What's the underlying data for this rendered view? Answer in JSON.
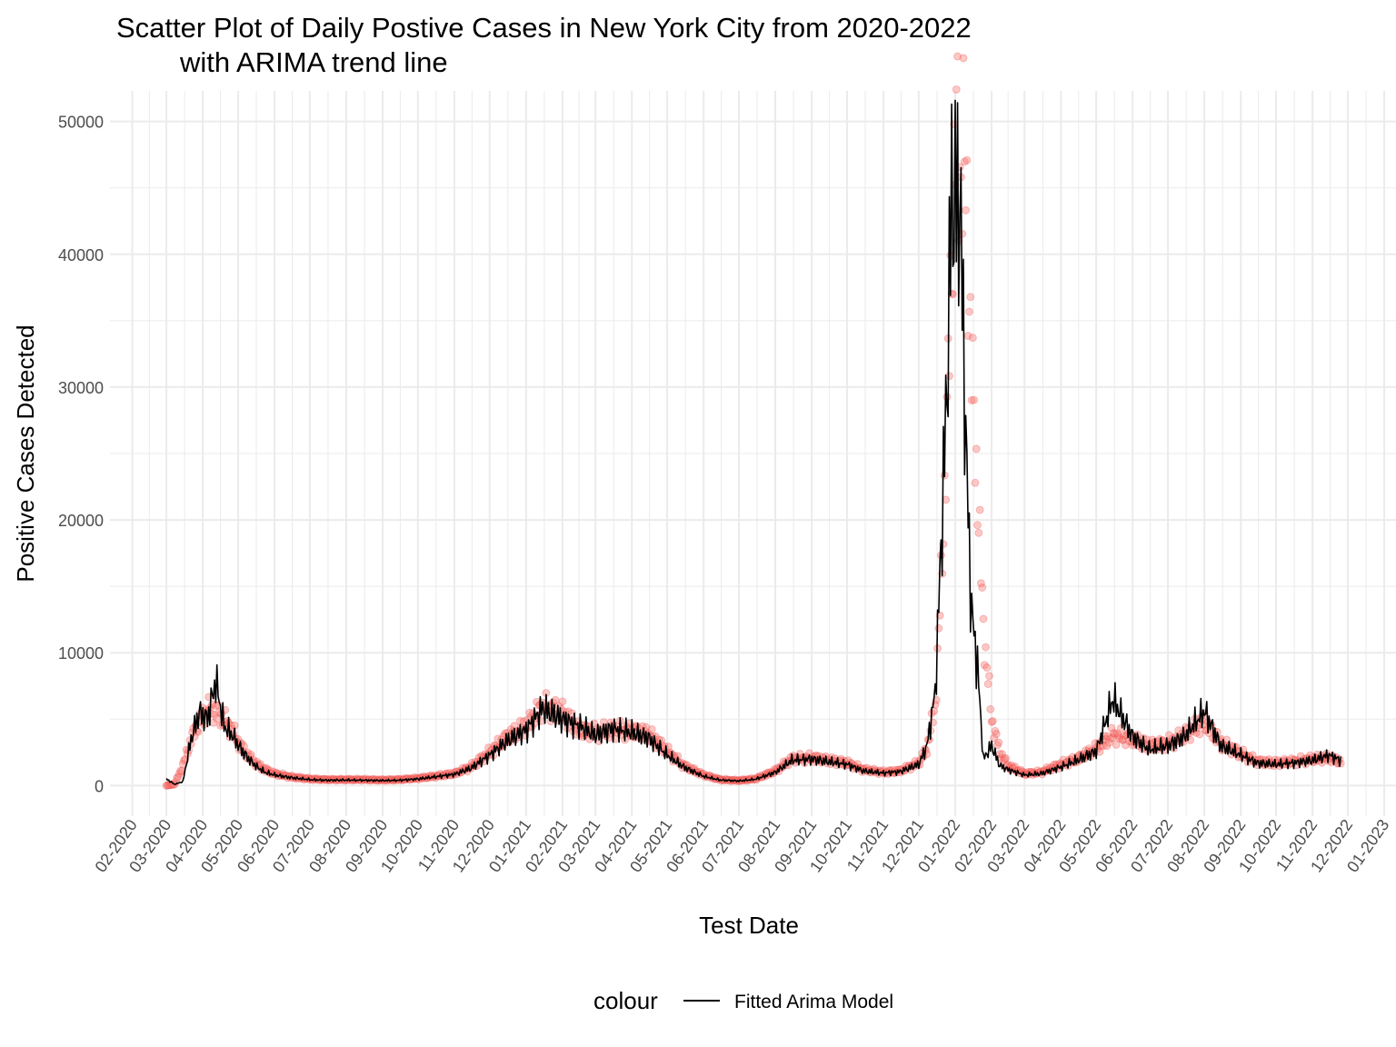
{
  "chart_data": {
    "type": "scatter",
    "title_line1": "Scatter Plot of Daily Postive Cases in New York City from 2020-2022",
    "title_line2": "with ARIMA trend line",
    "xlabel": "Test Date",
    "ylabel": "Positive Cases Detected",
    "xlim": [
      "2020-01-13",
      "2023-01-11"
    ],
    "ylim": [
      -2300,
      52300
    ],
    "x_tick_labels": [
      "02-2020",
      "03-2020",
      "04-2020",
      "05-2020",
      "06-2020",
      "07-2020",
      "08-2020",
      "09-2020",
      "10-2020",
      "11-2020",
      "12-2020",
      "01-2021",
      "02-2021",
      "03-2021",
      "04-2021",
      "05-2021",
      "06-2021",
      "07-2021",
      "08-2021",
      "09-2021",
      "10-2021",
      "11-2021",
      "12-2021",
      "01-2022",
      "02-2022",
      "03-2022",
      "04-2022",
      "05-2022",
      "06-2022",
      "07-2022",
      "08-2022",
      "09-2022",
      "10-2022",
      "11-2022",
      "12-2022",
      "01-2023"
    ],
    "y_ticks": [
      0,
      10000,
      20000,
      30000,
      40000,
      50000
    ],
    "grid": true,
    "legend": {
      "title": "colour",
      "position": "bottom",
      "entries": [
        "Fitted Arima Model"
      ]
    },
    "colors": {
      "points": "#f8766d",
      "point_stroke": "#e8282a",
      "line": "#000000",
      "grid": "#ebebeb"
    },
    "series": [
      {
        "kind": "points",
        "x": [
          "2020-03-01",
          "2020-03-08",
          "2020-03-15",
          "2020-03-22",
          "2020-03-29",
          "2020-04-05",
          "2020-04-12",
          "2020-04-19",
          "2020-04-26",
          "2020-05-03",
          "2020-05-10",
          "2020-05-17",
          "2020-05-24",
          "2020-06-01",
          "2020-06-15",
          "2020-07-01",
          "2020-07-15",
          "2020-08-01",
          "2020-08-15",
          "2020-09-01",
          "2020-09-15",
          "2020-10-01",
          "2020-10-15",
          "2020-11-01",
          "2020-11-15",
          "2020-12-01",
          "2020-12-15",
          "2021-01-01",
          "2021-01-15",
          "2021-02-01",
          "2021-02-15",
          "2021-03-01",
          "2021-03-15",
          "2021-04-01",
          "2021-04-15",
          "2021-05-01",
          "2021-05-15",
          "2021-06-01",
          "2021-06-15",
          "2021-07-01",
          "2021-07-15",
          "2021-08-01",
          "2021-08-15",
          "2021-09-01",
          "2021-09-15",
          "2021-10-01",
          "2021-10-15",
          "2021-11-01",
          "2021-11-15",
          "2021-12-01",
          "2021-12-08",
          "2021-12-15",
          "2021-12-20",
          "2021-12-25",
          "2021-12-29",
          "2022-01-02",
          "2022-01-05",
          "2022-01-08",
          "2022-01-11",
          "2022-01-15",
          "2022-01-20",
          "2022-01-25",
          "2022-02-01",
          "2022-02-08",
          "2022-02-15",
          "2022-03-01",
          "2022-03-15",
          "2022-04-01",
          "2022-04-15",
          "2022-05-01",
          "2022-05-15",
          "2022-06-01",
          "2022-06-15",
          "2022-07-01",
          "2022-07-15",
          "2022-08-01",
          "2022-08-15",
          "2022-09-01",
          "2022-09-15",
          "2022-10-01",
          "2022-10-15",
          "2022-11-01",
          "2022-11-15",
          "2022-11-25"
        ],
        "y": [
          0,
          100,
          1500,
          3500,
          4800,
          5800,
          5500,
          5000,
          4200,
          3000,
          2200,
          1600,
          1200,
          900,
          650,
          500,
          450,
          450,
          450,
          420,
          450,
          550,
          700,
          900,
          1400,
          2500,
          3600,
          4500,
          6000,
          5500,
          4200,
          4000,
          4200,
          4100,
          3900,
          2600,
          1500,
          800,
          450,
          380,
          500,
          1100,
          2000,
          2100,
          1900,
          1700,
          1200,
          1000,
          1100,
          1700,
          2800,
          6000,
          15000,
          27000,
          40000,
          49800,
          46200,
          47600,
          42800,
          31500,
          22000,
          12000,
          5000,
          2500,
          1500,
          900,
          1000,
          1600,
          2000,
          2800,
          3800,
          3500,
          3000,
          3200,
          3800,
          4800,
          3200,
          2400,
          1800,
          1700,
          1800,
          2000,
          2100,
          1800
        ]
      },
      {
        "kind": "line",
        "name": "Fitted Arima Model",
        "x": [
          "2020-03-01",
          "2020-03-08",
          "2020-03-15",
          "2020-03-22",
          "2020-03-29",
          "2020-04-05",
          "2020-04-12",
          "2020-04-19",
          "2020-04-26",
          "2020-05-03",
          "2020-05-10",
          "2020-05-17",
          "2020-05-24",
          "2020-06-01",
          "2020-06-15",
          "2020-07-01",
          "2020-07-15",
          "2020-08-01",
          "2020-08-15",
          "2020-09-01",
          "2020-09-15",
          "2020-10-01",
          "2020-10-15",
          "2020-11-01",
          "2020-11-15",
          "2020-12-01",
          "2020-12-15",
          "2021-01-01",
          "2021-01-15",
          "2021-02-01",
          "2021-02-15",
          "2021-03-01",
          "2021-03-15",
          "2021-04-01",
          "2021-04-15",
          "2021-05-01",
          "2021-05-15",
          "2021-06-01",
          "2021-06-15",
          "2021-07-01",
          "2021-07-15",
          "2021-08-01",
          "2021-08-15",
          "2021-09-01",
          "2021-09-15",
          "2021-10-01",
          "2021-10-15",
          "2021-11-01",
          "2021-11-15",
          "2021-12-01",
          "2021-12-08",
          "2021-12-15",
          "2021-12-20",
          "2021-12-25",
          "2021-12-29",
          "2022-01-02",
          "2022-01-05",
          "2022-01-08",
          "2022-01-11",
          "2022-01-15",
          "2022-01-20",
          "2022-01-25",
          "2022-02-01",
          "2022-02-08",
          "2022-02-15",
          "2022-03-01",
          "2022-03-15",
          "2022-04-01",
          "2022-04-15",
          "2022-05-01",
          "2022-05-15",
          "2022-06-01",
          "2022-06-15",
          "2022-07-01",
          "2022-07-15",
          "2022-08-01",
          "2022-08-15",
          "2022-09-01",
          "2022-09-15",
          "2022-10-01",
          "2022-10-15",
          "2022-11-01",
          "2022-11-15",
          "2022-11-25"
        ],
        "y": [
          500,
          100,
          300,
          3500,
          5500,
          5000,
          7900,
          4500,
          3800,
          2800,
          2000,
          1400,
          1000,
          800,
          600,
          450,
          400,
          420,
          400,
          380,
          400,
          500,
          650,
          850,
          1300,
          2300,
          3300,
          4200,
          5800,
          5000,
          4500,
          3800,
          4300,
          4000,
          3600,
          2300,
          1400,
          700,
          420,
          350,
          480,
          1000,
          1900,
          2000,
          1800,
          1600,
          1100,
          950,
          1050,
          1600,
          3000,
          7000,
          18000,
          30000,
          44500,
          43800,
          44300,
          34000,
          23000,
          13000,
          9000,
          2000,
          3000,
          1500,
          1200,
          800,
          900,
          1400,
          1900,
          2600,
          6500,
          3700,
          2700,
          3000,
          3700,
          5600,
          3000,
          2300,
          1700,
          1600,
          1700,
          1900,
          2300,
          1900
        ]
      }
    ]
  }
}
